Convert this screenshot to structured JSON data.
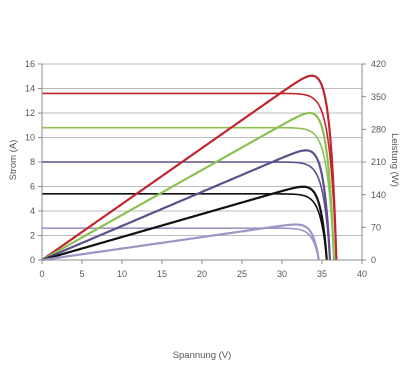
{
  "chart_data": {
    "type": "line",
    "xlabel": "Spannung (V)",
    "ylabel": "Strom (A)",
    "ylabel_right": "Leistung (W)",
    "xlim": [
      0,
      40
    ],
    "ylim": [
      0,
      16
    ],
    "ylim_right": [
      0,
      420
    ],
    "x_ticks": [
      "0",
      "5",
      "10",
      "15",
      "20",
      "25",
      "30",
      "35",
      "40"
    ],
    "y_ticks": [
      "0",
      "2",
      "4",
      "6",
      "8",
      "10",
      "12",
      "14",
      "16"
    ],
    "y_right_ticks": [
      "0",
      "70",
      "140",
      "210",
      "280",
      "350",
      "420"
    ],
    "grid": true,
    "series": [
      {
        "color": "#c0272d",
        "isc": 13.6,
        "voc": 36.8,
        "pmax": 395,
        "vmp": 30.3,
        "ff_cap": 13.5,
        "cap_width": 3.5,
        "width_iv": 1.6,
        "width_p": 2.2
      },
      {
        "color": "#8cc152",
        "isc": 10.8,
        "voc": 36.5,
        "pmax": 315,
        "vmp": 30.2,
        "ff_cap": 10.7,
        "cap_width": 3.5,
        "width_iv": 1.6,
        "width_p": 2.2
      },
      {
        "color": "#5d4e8c",
        "isc": 8.0,
        "voc": 36.0,
        "pmax": 235,
        "vmp": 30.1,
        "ff_cap": 7.9,
        "cap_width": 3.5,
        "width_iv": 1.6,
        "width_p": 2.2
      },
      {
        "color": "#111111",
        "isc": 5.4,
        "voc": 35.6,
        "pmax": 157,
        "vmp": 30.0,
        "ff_cap": 5.3,
        "cap_width": 3.5,
        "width_iv": 1.6,
        "width_p": 2.2
      },
      {
        "color": "#9b96c4",
        "isc": 2.6,
        "voc": 34.6,
        "pmax": 76,
        "vmp": 29.8,
        "ff_cap": 2.5,
        "cap_width": 3.5,
        "width_iv": 1.6,
        "width_p": 2.2
      }
    ]
  }
}
